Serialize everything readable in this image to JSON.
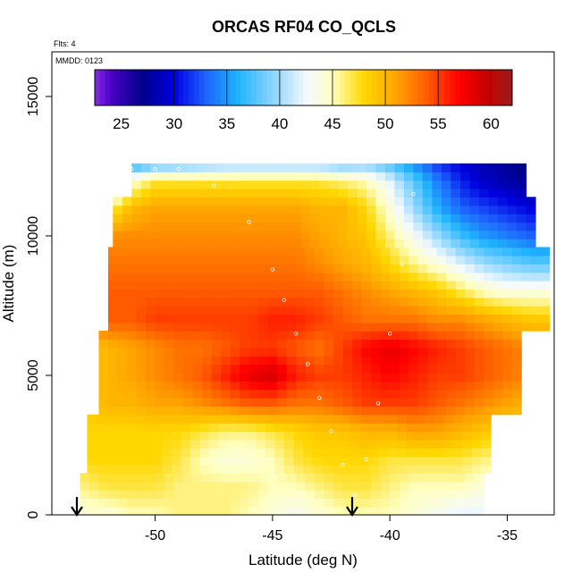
{
  "chart_data": {
    "type": "heatmap",
    "title": "ORCAS RF04 CO_QCLS",
    "note_flights": "Flts: 4",
    "note_date": "MMDD: 0123",
    "xlabel": "Latitude (deg N)",
    "ylabel": "Altitude (m)",
    "xlim": [
      -54.4,
      -33
    ],
    "ylim": [
      0,
      16600
    ],
    "x_ticks": [
      -50,
      -45,
      -40,
      -35
    ],
    "x_tick_labels": [
      "-50",
      "-45",
      "-40",
      "-35"
    ],
    "y_ticks": [
      0,
      5000,
      10000,
      15000
    ],
    "y_tick_labels": [
      "0",
      "5000",
      "10000",
      "15000"
    ],
    "colorbar": {
      "min": 22.5,
      "max": 62,
      "ticks": [
        25,
        30,
        35,
        40,
        45,
        50,
        55,
        60
      ],
      "tick_labels": [
        "25",
        "30",
        "35",
        "40",
        "45",
        "50",
        "55",
        "60"
      ],
      "stops": [
        {
          "v": 22.5,
          "color": "#8a2be2"
        },
        {
          "v": 24,
          "color": "#4b00c8"
        },
        {
          "v": 27,
          "color": "#00008b"
        },
        {
          "v": 30,
          "color": "#0000e0"
        },
        {
          "v": 33,
          "color": "#1e64ff"
        },
        {
          "v": 36,
          "color": "#1eb4ff"
        },
        {
          "v": 40,
          "color": "#a0dcff"
        },
        {
          "v": 42.5,
          "color": "#f4faff"
        },
        {
          "v": 45,
          "color": "#ffffc0"
        },
        {
          "v": 48,
          "color": "#ffd700"
        },
        {
          "v": 51,
          "color": "#ffa500"
        },
        {
          "v": 54,
          "color": "#ff5a00"
        },
        {
          "v": 57,
          "color": "#ff0000"
        },
        {
          "v": 59.5,
          "color": "#c80000"
        },
        {
          "v": 62,
          "color": "#9b1c1c"
        }
      ]
    },
    "series": [
      {
        "name": "",
        "description_fields": [
          "lat",
          "alt",
          "value"
        ],
        "points": [
          {
            "x": -52.0,
            "y": 12400
          },
          {
            "x": -51.0,
            "y": 12400
          },
          {
            "x": -50.0,
            "y": 12400
          },
          {
            "x": -49.0,
            "y": 12400
          },
          {
            "x": -47.5,
            "y": 11800
          },
          {
            "x": -46.0,
            "y": 10500
          },
          {
            "x": -45.0,
            "y": 8800
          },
          {
            "x": -44.5,
            "y": 7700
          },
          {
            "x": -44.0,
            "y": 6500
          },
          {
            "x": -43.5,
            "y": 5400
          },
          {
            "x": -43.0,
            "y": 4200
          },
          {
            "x": -42.5,
            "y": 3000
          },
          {
            "x": -42.0,
            "y": 1800
          },
          {
            "x": -41.5,
            "y": 700
          },
          {
            "x": -41.0,
            "y": 2000
          },
          {
            "x": -40.5,
            "y": 4000
          },
          {
            "x": -40.0,
            "y": 6500
          },
          {
            "x": -39.5,
            "y": 9000
          },
          {
            "x": -39.0,
            "y": 11500
          },
          {
            "x": -38.5,
            "y": 12800
          },
          {
            "x": -37.5,
            "y": 12800
          },
          {
            "x": -36.0,
            "y": 12800
          },
          {
            "x": -35.0,
            "y": 12800
          }
        ]
      }
    ],
    "grid_values": {
      "lat_start": -54,
      "lat_step": 1,
      "alt_start": 0,
      "alt_step": 1000,
      "values_by_alt_row": [
        [
          43,
          44,
          44,
          45,
          45,
          46,
          46,
          46,
          45,
          44,
          43,
          44,
          45,
          45,
          45,
          44,
          43,
          42,
          42,
          43,
          43
        ],
        [
          46,
          46,
          47,
          47,
          47,
          46,
          46,
          46,
          46,
          45,
          45,
          46,
          47,
          47,
          46,
          45,
          45,
          45,
          44,
          44,
          44
        ],
        [
          47,
          48,
          48,
          48,
          48,
          47,
          45,
          44,
          44,
          45,
          47,
          48,
          48,
          48,
          47,
          47,
          47,
          47,
          46,
          46,
          46
        ],
        [
          48,
          48,
          48,
          48,
          48,
          48,
          47,
          46,
          46,
          47,
          48,
          49,
          49,
          50,
          50,
          51,
          51,
          50,
          49,
          48,
          48
        ],
        [
          49,
          49,
          50,
          50,
          51,
          51,
          52,
          53,
          54,
          54,
          53,
          53,
          54,
          55,
          55,
          55,
          54,
          53,
          52,
          51,
          50
        ],
        [
          49,
          49,
          50,
          51,
          52,
          53,
          54,
          56,
          58,
          59,
          56,
          55,
          55,
          56,
          57,
          56,
          55,
          55,
          54,
          53,
          52
        ],
        [
          48,
          49,
          50,
          51,
          52,
          53,
          53,
          54,
          55,
          55,
          54,
          53,
          55,
          57,
          58,
          57,
          56,
          55,
          54,
          53,
          52
        ],
        [
          52,
          53,
          54,
          54,
          55,
          55,
          55,
          55,
          55,
          56,
          56,
          55,
          54,
          53,
          53,
          53,
          52,
          52,
          51,
          50,
          49
        ],
        [
          53,
          54,
          54,
          54,
          54,
          54,
          54,
          54,
          54,
          54,
          54,
          54,
          53,
          52,
          51,
          50,
          49,
          47,
          45,
          44,
          44
        ],
        [
          52,
          52,
          53,
          53,
          53,
          53,
          53,
          53,
          53,
          53,
          53,
          52,
          51,
          50,
          48,
          46,
          44,
          42,
          40,
          39,
          38
        ],
        [
          51,
          51,
          52,
          52,
          52,
          52,
          52,
          52,
          52,
          52,
          52,
          51,
          50,
          49,
          46,
          43,
          40,
          37,
          35,
          34,
          33
        ],
        [
          42,
          43,
          46,
          50,
          51,
          51,
          51,
          51,
          51,
          51,
          51,
          50,
          50,
          48,
          44,
          40,
          36,
          33,
          32,
          31,
          30
        ],
        [
          27,
          29,
          36,
          44,
          47,
          47,
          47,
          47,
          47,
          47,
          47,
          47,
          46,
          45,
          42,
          38,
          34,
          31,
          29,
          28,
          27
        ],
        [
          24,
          25,
          27,
          30,
          31,
          32,
          33,
          34,
          34,
          34,
          34,
          34,
          33,
          35,
          34,
          32,
          30,
          29,
          28,
          27,
          26
        ]
      ]
    }
  },
  "annotations": {
    "arrow_left_label": "",
    "arrow_right_label": ""
  }
}
